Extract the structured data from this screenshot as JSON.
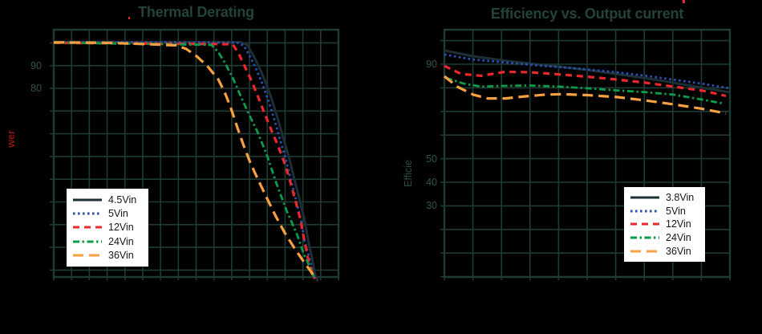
{
  "colors": {
    "background": "#000000",
    "grid": "#1e3b34",
    "title": "#22423b",
    "tick_label": "#315249",
    "legend_background": "#ffffff",
    "legend_text": "#161616",
    "left_ylabel_red": "#8c150d",
    "right_ylabel_teal": "#2a4a42",
    "artifact_red": "#e8262d"
  },
  "artifacts": {
    "top_right_red_speck": true,
    "title_red_dot": true
  },
  "chart_data": [
    {
      "type": "line",
      "title": "Thermal Derating",
      "ylabel_fragment": "wer",
      "xlabel": "",
      "x_axis": {
        "divisions": 16,
        "tick_labels_visible": false
      },
      "y_axis": {
        "gridline_min": 0,
        "gridline_max": 100,
        "gridline_step": 10,
        "visible_tick_labels": [
          90,
          80
        ]
      },
      "legend_position": "bottom-left",
      "series": [
        {
          "name": "4.5Vin",
          "color": "#1d2f36",
          "style": "solid",
          "points": [
            [
              0,
              100.5
            ],
            [
              10.51,
              100.3
            ],
            [
              10.87,
              99.1
            ],
            [
              11.19,
              94.8
            ],
            [
              11.51,
              89.9
            ],
            [
              11.91,
              82.5
            ],
            [
              12.27,
              74.7
            ],
            [
              12.59,
              66.6
            ],
            [
              12.9,
              58.1
            ],
            [
              13.22,
              49.6
            ],
            [
              13.53,
              39.7
            ],
            [
              13.85,
              29.8
            ],
            [
              14.12,
              21.0
            ],
            [
              14.3,
              12.9
            ],
            [
              14.52,
              5.1
            ],
            [
              14.66,
              -1.3
            ],
            [
              14.84,
              -4.9
            ]
          ]
        },
        {
          "name": "5Vin",
          "color": "#2a52ae",
          "style": "dotted",
          "points": [
            [
              0,
              100.3
            ],
            [
              10.31,
              100.1
            ],
            [
              10.67,
              98.9
            ],
            [
              10.99,
              94.6
            ],
            [
              11.31,
              89.7
            ],
            [
              11.71,
              82.3
            ],
            [
              12.07,
              74.5
            ],
            [
              12.39,
              66.4
            ],
            [
              12.7,
              57.9
            ],
            [
              13.02,
              49.4
            ],
            [
              13.33,
              39.5
            ],
            [
              13.65,
              29.6
            ],
            [
              13.92,
              20.8
            ],
            [
              14.1,
              12.7
            ],
            [
              14.38,
              4.9
            ],
            [
              14.55,
              -1.5
            ],
            [
              14.75,
              -4.5
            ]
          ]
        },
        {
          "name": "12Vin",
          "color": "#e8282c",
          "style": "dashed",
          "points": [
            [
              0,
              100.0
            ],
            [
              10.06,
              99.4
            ],
            [
              10.42,
              94.8
            ],
            [
              10.74,
              89.5
            ],
            [
              11.1,
              83.5
            ],
            [
              11.42,
              77.5
            ],
            [
              11.73,
              71.2
            ],
            [
              12.0,
              65.9
            ],
            [
              12.3,
              60.2
            ],
            [
              12.63,
              54.2
            ],
            [
              13.0,
              46.5
            ],
            [
              13.3,
              38.6
            ],
            [
              13.58,
              30.5
            ],
            [
              13.85,
              22.7
            ],
            [
              14.07,
              13.5
            ],
            [
              14.3,
              4.7
            ],
            [
              14.5,
              -0.6
            ],
            [
              14.66,
              -3.8
            ]
          ]
        },
        {
          "name": "24Vin",
          "color": "#0c9c4a",
          "style": "dashdot",
          "points": [
            [
              0,
              100.1
            ],
            [
              8.85,
              99.1
            ],
            [
              9.25,
              95.9
            ],
            [
              9.61,
              91.3
            ],
            [
              10.06,
              84.6
            ],
            [
              10.51,
              76.5
            ],
            [
              10.96,
              68.7
            ],
            [
              11.42,
              61.3
            ],
            [
              11.96,
              51.0
            ],
            [
              12.54,
              37.6
            ],
            [
              13.08,
              26.3
            ],
            [
              13.67,
              15.7
            ],
            [
              14.03,
              7.6
            ],
            [
              14.39,
              1.2
            ],
            [
              14.62,
              -3.0
            ]
          ]
        },
        {
          "name": "36Vin",
          "color": "#f9a140",
          "style": "longdash",
          "points": [
            [
              0,
              100.2
            ],
            [
              3.3,
              100.0
            ],
            [
              6.91,
              98.9
            ],
            [
              7.45,
              97.3
            ],
            [
              8.03,
              94.1
            ],
            [
              8.62,
              89.9
            ],
            [
              9.25,
              83.9
            ],
            [
              9.61,
              78.2
            ],
            [
              9.93,
              71.9
            ],
            [
              10.29,
              63.4
            ],
            [
              10.65,
              55.3
            ],
            [
              11.05,
              47.1
            ],
            [
              11.51,
              39.3
            ],
            [
              11.96,
              31.9
            ],
            [
              12.45,
              24.1
            ],
            [
              12.99,
              16.3
            ],
            [
              13.53,
              9.6
            ],
            [
              14.03,
              3.9
            ],
            [
              14.48,
              -1.0
            ],
            [
              14.66,
              -3.5
            ]
          ]
        }
      ]
    },
    {
      "type": "line",
      "title": "Efficiency vs. Output current",
      "ylabel_fragment": "Efficie",
      "xlabel": "",
      "x_axis": {
        "divisions": 10,
        "tick_labels_visible": false
      },
      "y_axis": {
        "gridline_min": 0,
        "gridline_max": 100,
        "gridline_step": 10,
        "visible_tick_labels": [
          90,
          50,
          40,
          30
        ]
      },
      "legend_position": "bottom-right",
      "series": [
        {
          "name": "3.8Vin",
          "color": "#1d2f36",
          "style": "solid",
          "points": [
            [
              0,
              95.8
            ],
            [
              1,
              93.4
            ],
            [
              2,
              91.7
            ],
            [
              3,
              90.3
            ],
            [
              4,
              89.0
            ],
            [
              5,
              87.6
            ],
            [
              6,
              85.9
            ],
            [
              7,
              84.2
            ],
            [
              8,
              82.2
            ],
            [
              9,
              80.1
            ],
            [
              10,
              78.1
            ]
          ]
        },
        {
          "name": "5Vin",
          "color": "#2a52ae",
          "style": "dotted",
          "points": [
            [
              0,
              94.1
            ],
            [
              1,
              92.0
            ],
            [
              2,
              90.9
            ],
            [
              3,
              89.8
            ],
            [
              4,
              88.8
            ],
            [
              5,
              87.8
            ],
            [
              6,
              86.6
            ],
            [
              7,
              85.2
            ],
            [
              8,
              83.5
            ],
            [
              9,
              81.8
            ],
            [
              10,
              79.8
            ]
          ]
        },
        {
          "name": "12Vin",
          "color": "#e8282c",
          "style": "dashed",
          "points": [
            [
              0,
              89.3
            ],
            [
              0.59,
              85.9
            ],
            [
              1.29,
              85.1
            ],
            [
              2.13,
              86.8
            ],
            [
              2.98,
              86.6
            ],
            [
              4.02,
              85.7
            ],
            [
              5.03,
              84.7
            ],
            [
              6.04,
              83.5
            ],
            [
              7.02,
              82.2
            ],
            [
              8.03,
              80.5
            ],
            [
              9.04,
              78.8
            ],
            [
              9.86,
              76.6
            ]
          ]
        },
        {
          "name": "24Vin",
          "color": "#0c9c4a",
          "style": "dashdot",
          "points": [
            [
              0.06,
              84.2
            ],
            [
              0.67,
              81.8
            ],
            [
              1.29,
              80.5
            ],
            [
              2.02,
              80.8
            ],
            [
              3.03,
              81.0
            ],
            [
              4.02,
              80.5
            ],
            [
              5.03,
              79.8
            ],
            [
              6.04,
              78.9
            ],
            [
              7.02,
              78.2
            ],
            [
              8.03,
              77.1
            ],
            [
              9.04,
              75.0
            ],
            [
              9.8,
              73.3
            ]
          ]
        },
        {
          "name": "36Vin",
          "color": "#f9a140",
          "style": "longdash",
          "points": [
            [
              0,
              84.9
            ],
            [
              0.45,
              80.5
            ],
            [
              1.01,
              77.1
            ],
            [
              1.52,
              75.5
            ],
            [
              2.13,
              75.5
            ],
            [
              2.84,
              76.4
            ],
            [
              3.54,
              77.1
            ],
            [
              4.1,
              77.3
            ],
            [
              5.03,
              76.9
            ],
            [
              6.04,
              76.1
            ],
            [
              7.02,
              74.7
            ],
            [
              8.03,
              73.0
            ],
            [
              9.04,
              71.1
            ],
            [
              9.86,
              69.2
            ]
          ]
        }
      ]
    }
  ]
}
